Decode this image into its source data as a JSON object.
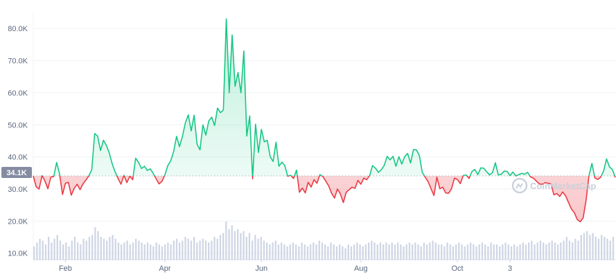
{
  "watermark": "CoinMarketCap",
  "colors": {
    "up": "#16c784",
    "down": "#ea3943",
    "grid": "#eff2f5",
    "axis_text": "#58667e",
    "volume": "#cfd6e4",
    "ref_badge": "#858ca2"
  },
  "chart_data": {
    "type": "line",
    "reference": {
      "value": 34100,
      "label": "34.1K"
    },
    "ylim": [
      8000,
      85000
    ],
    "y_ticks": [
      {
        "value": 80000,
        "label": "80.0K"
      },
      {
        "value": 70000,
        "label": "70.0K"
      },
      {
        "value": 60000,
        "label": "60.0K"
      },
      {
        "value": 50000,
        "label": "50.0K"
      },
      {
        "value": 40000,
        "label": "40.0K"
      },
      {
        "value": 30000,
        "label": "30.0K"
      },
      {
        "value": 20000,
        "label": "20.0K"
      },
      {
        "value": 10000,
        "label": "10.0K"
      }
    ],
    "x_ticks": [
      {
        "x": 11,
        "label": "Feb"
      },
      {
        "x": 45,
        "label": "Apr"
      },
      {
        "x": 78,
        "label": "Jun"
      },
      {
        "x": 112,
        "label": "Aug"
      },
      {
        "x": 145,
        "label": "Oct"
      },
      {
        "x": 163,
        "label": "3"
      }
    ],
    "x_range": [
      0,
      199
    ],
    "price": [
      34100,
      30700,
      30000,
      34200,
      32500,
      30100,
      33700,
      33900,
      38300,
      34700,
      28300,
      31800,
      32100,
      28100,
      30200,
      31500,
      29800,
      31600,
      32800,
      34100,
      36000,
      47300,
      46500,
      42000,
      45200,
      43600,
      41200,
      37800,
      35300,
      33300,
      31500,
      34300,
      32000,
      34000,
      32900,
      39600,
      38300,
      36400,
      37100,
      35800,
      36300,
      34900,
      33200,
      31600,
      32400,
      34400,
      37300,
      38800,
      41700,
      46400,
      43200,
      46400,
      50600,
      53100,
      48100,
      53000,
      44000,
      42200,
      50000,
      46800,
      51200,
      52400,
      49800,
      55200,
      53800,
      54600,
      83000,
      60000,
      78000,
      62000,
      66300,
      60000,
      73000,
      46500,
      52800,
      33200,
      50200,
      41400,
      48600,
      44700,
      45200,
      40100,
      38600,
      44600,
      37100,
      38400,
      37300,
      34000,
      34300,
      33300,
      35900,
      29000,
      30300,
      28800,
      32100,
      30600,
      32900,
      31800,
      34500,
      33900,
      32500,
      31000,
      28700,
      27200,
      30000,
      28500,
      25800,
      29000,
      29800,
      30600,
      30200,
      32700,
      31500,
      33400,
      32900,
      34200,
      37300,
      36500,
      35200,
      36000,
      37400,
      40200,
      39100,
      40200,
      37100,
      40100,
      37800,
      40100,
      41100,
      38100,
      42300,
      42200,
      40500,
      35200,
      33700,
      32300,
      30100,
      28000,
      33700,
      30100,
      30600,
      28800,
      28700,
      30100,
      33400,
      33000,
      31700,
      34200,
      34400,
      33300,
      35500,
      36100,
      34500,
      36600,
      36500,
      35400,
      34400,
      35100,
      38200,
      34400,
      34600,
      35600,
      35500,
      34200,
      35300,
      34100,
      34500,
      34900,
      34600,
      35200,
      33800,
      33400,
      32500,
      31600,
      31500,
      32000,
      31800,
      31600,
      28200,
      28600,
      27700,
      29100,
      27900,
      25800,
      23800,
      22600,
      20500,
      19800,
      21000,
      26500,
      34200,
      38000,
      33500,
      33000,
      33700,
      35600,
      39400,
      36900,
      36100,
      33600
    ],
    "volume": [
      7,
      9,
      11,
      10,
      8,
      12,
      9,
      11,
      13,
      10,
      8,
      9,
      7,
      10,
      12,
      9,
      8,
      11,
      10,
      12,
      13,
      17,
      15,
      12,
      11,
      10,
      12,
      13,
      11,
      9,
      8,
      9,
      10,
      8,
      9,
      11,
      10,
      9,
      8,
      9,
      8,
      7,
      9,
      8,
      7,
      8,
      9,
      8,
      10,
      11,
      9,
      10,
      12,
      11,
      10,
      12,
      9,
      10,
      11,
      10,
      9,
      10,
      12,
      11,
      13,
      14,
      20,
      16,
      18,
      15,
      16,
      14,
      15,
      12,
      14,
      10,
      13,
      11,
      12,
      10,
      9,
      8,
      9,
      10,
      8,
      9,
      8,
      7,
      8,
      9,
      8,
      7,
      9,
      8,
      7,
      8,
      9,
      8,
      10,
      9,
      8,
      7,
      9,
      8,
      7,
      8,
      7,
      6,
      8,
      7,
      8,
      9,
      8,
      7,
      8,
      9,
      10,
      9,
      8,
      9,
      8,
      9,
      8,
      9,
      8,
      9,
      8,
      7,
      8,
      9,
      8,
      9,
      8,
      7,
      9,
      8,
      9,
      10,
      9,
      8,
      8,
      7,
      9,
      8,
      7,
      8,
      9,
      8,
      7,
      8,
      9,
      8,
      7,
      8,
      9,
      8,
      7,
      9,
      8,
      8,
      7,
      8,
      9,
      8,
      7,
      8,
      7,
      8,
      9,
      8,
      9,
      10,
      8,
      9,
      10,
      9,
      8,
      9,
      10,
      9,
      8,
      9,
      10,
      12,
      10,
      9,
      11,
      10,
      13,
      14,
      15,
      13,
      14,
      12,
      11,
      13,
      12,
      11,
      10,
      12
    ]
  }
}
